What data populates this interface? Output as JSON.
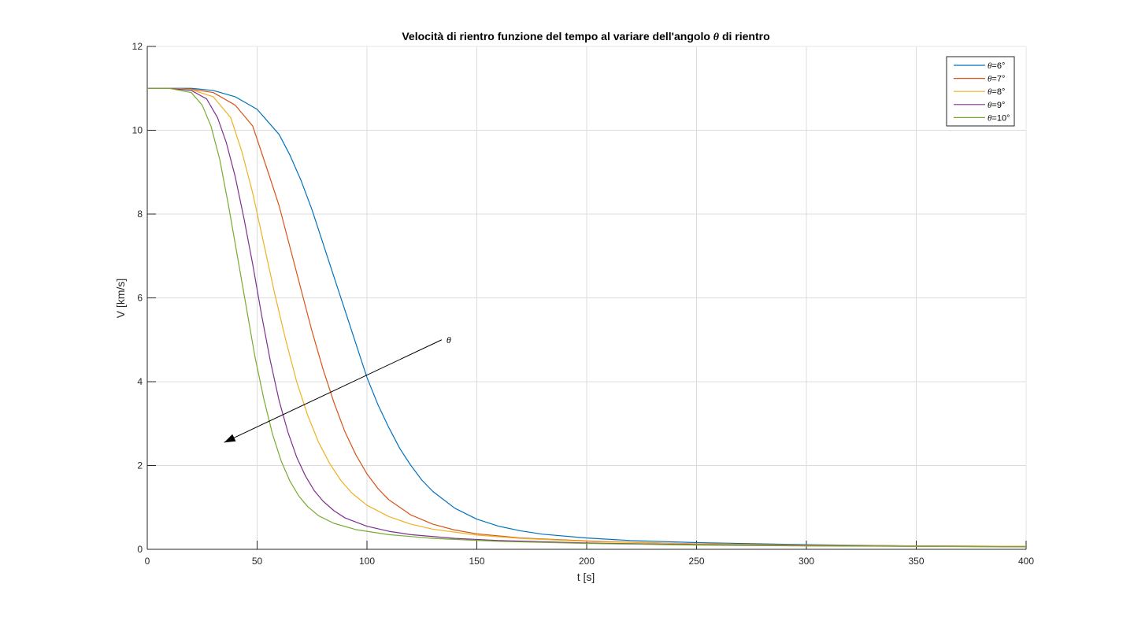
{
  "chart_data": {
    "type": "line",
    "title_prefix": "Velocità di rientro funzione del tempo al variare dell'angolo ",
    "title_symbol": "θ",
    "title_suffix": " di rientro",
    "xlabel": "t [s]",
    "ylabel": "V [km/s]",
    "xlim": [
      0,
      400
    ],
    "ylim": [
      0,
      12
    ],
    "xticks": [
      0,
      50,
      100,
      150,
      200,
      250,
      300,
      350,
      400
    ],
    "yticks": [
      0,
      2,
      4,
      6,
      8,
      10,
      12
    ],
    "grid": true,
    "legend_position": "top-right",
    "annotation": {
      "label": "θ",
      "arrow_from": [
        134,
        5.0
      ],
      "arrow_to": [
        35,
        2.55
      ]
    },
    "series": [
      {
        "name": "θ=6°",
        "symbol": "θ",
        "suffix": "=6°",
        "color": "#0072BD",
        "points": [
          [
            0,
            11
          ],
          [
            10,
            11
          ],
          [
            20,
            11
          ],
          [
            30,
            10.95
          ],
          [
            40,
            10.8
          ],
          [
            50,
            10.5
          ],
          [
            60,
            9.9
          ],
          [
            65,
            9.4
          ],
          [
            70,
            8.8
          ],
          [
            75,
            8.1
          ],
          [
            80,
            7.3
          ],
          [
            85,
            6.5
          ],
          [
            90,
            5.7
          ],
          [
            95,
            4.9
          ],
          [
            100,
            4.1
          ],
          [
            105,
            3.45
          ],
          [
            110,
            2.9
          ],
          [
            115,
            2.4
          ],
          [
            120,
            2.0
          ],
          [
            125,
            1.65
          ],
          [
            130,
            1.38
          ],
          [
            140,
            0.98
          ],
          [
            150,
            0.72
          ],
          [
            160,
            0.55
          ],
          [
            170,
            0.44
          ],
          [
            180,
            0.36
          ],
          [
            200,
            0.27
          ],
          [
            220,
            0.21
          ],
          [
            250,
            0.16
          ],
          [
            300,
            0.11
          ],
          [
            350,
            0.08
          ],
          [
            400,
            0.07
          ]
        ]
      },
      {
        "name": "θ=7°",
        "symbol": "θ",
        "suffix": "=7°",
        "color": "#D95319",
        "points": [
          [
            0,
            11
          ],
          [
            10,
            11
          ],
          [
            20,
            10.98
          ],
          [
            30,
            10.9
          ],
          [
            40,
            10.6
          ],
          [
            48,
            10.1
          ],
          [
            55,
            9.0
          ],
          [
            60,
            8.2
          ],
          [
            65,
            7.2
          ],
          [
            70,
            6.2
          ],
          [
            75,
            5.2
          ],
          [
            80,
            4.3
          ],
          [
            85,
            3.5
          ],
          [
            90,
            2.8
          ],
          [
            95,
            2.25
          ],
          [
            100,
            1.8
          ],
          [
            105,
            1.45
          ],
          [
            110,
            1.18
          ],
          [
            120,
            0.82
          ],
          [
            130,
            0.6
          ],
          [
            140,
            0.46
          ],
          [
            150,
            0.37
          ],
          [
            170,
            0.27
          ],
          [
            200,
            0.2
          ],
          [
            250,
            0.13
          ],
          [
            300,
            0.1
          ],
          [
            350,
            0.08
          ],
          [
            400,
            0.07
          ]
        ]
      },
      {
        "name": "θ=8°",
        "symbol": "θ",
        "suffix": "=8°",
        "color": "#EDB120",
        "points": [
          [
            0,
            11
          ],
          [
            10,
            11
          ],
          [
            20,
            10.97
          ],
          [
            30,
            10.8
          ],
          [
            38,
            10.3
          ],
          [
            43,
            9.5
          ],
          [
            48,
            8.5
          ],
          [
            53,
            7.3
          ],
          [
            58,
            6.1
          ],
          [
            63,
            5.0
          ],
          [
            68,
            4.0
          ],
          [
            73,
            3.2
          ],
          [
            78,
            2.55
          ],
          [
            83,
            2.05
          ],
          [
            88,
            1.65
          ],
          [
            93,
            1.35
          ],
          [
            100,
            1.05
          ],
          [
            110,
            0.78
          ],
          [
            120,
            0.6
          ],
          [
            130,
            0.48
          ],
          [
            150,
            0.34
          ],
          [
            170,
            0.26
          ],
          [
            200,
            0.19
          ],
          [
            250,
            0.13
          ],
          [
            300,
            0.1
          ],
          [
            350,
            0.08
          ],
          [
            400,
            0.07
          ]
        ]
      },
      {
        "name": "θ=9°",
        "symbol": "θ",
        "suffix": "=9°",
        "color": "#7E2F8E",
        "points": [
          [
            0,
            11
          ],
          [
            10,
            11
          ],
          [
            20,
            10.95
          ],
          [
            27,
            10.75
          ],
          [
            32,
            10.3
          ],
          [
            36,
            9.7
          ],
          [
            40,
            8.9
          ],
          [
            44,
            7.9
          ],
          [
            48,
            6.8
          ],
          [
            52,
            5.6
          ],
          [
            56,
            4.5
          ],
          [
            60,
            3.55
          ],
          [
            64,
            2.8
          ],
          [
            68,
            2.2
          ],
          [
            72,
            1.75
          ],
          [
            76,
            1.4
          ],
          [
            80,
            1.15
          ],
          [
            85,
            0.92
          ],
          [
            90,
            0.75
          ],
          [
            100,
            0.55
          ],
          [
            110,
            0.43
          ],
          [
            120,
            0.35
          ],
          [
            140,
            0.26
          ],
          [
            160,
            0.21
          ],
          [
            200,
            0.15
          ],
          [
            250,
            0.11
          ],
          [
            300,
            0.09
          ],
          [
            350,
            0.07
          ],
          [
            400,
            0.06
          ]
        ]
      },
      {
        "name": "θ=10°",
        "symbol": "θ",
        "suffix": "=10°",
        "color": "#77AC30",
        "points": [
          [
            0,
            11
          ],
          [
            10,
            11
          ],
          [
            20,
            10.9
          ],
          [
            25,
            10.6
          ],
          [
            29,
            10.1
          ],
          [
            33,
            9.3
          ],
          [
            37,
            8.2
          ],
          [
            41,
            7.0
          ],
          [
            45,
            5.8
          ],
          [
            49,
            4.6
          ],
          [
            53,
            3.6
          ],
          [
            57,
            2.75
          ],
          [
            61,
            2.1
          ],
          [
            65,
            1.62
          ],
          [
            69,
            1.27
          ],
          [
            73,
            1.02
          ],
          [
            78,
            0.8
          ],
          [
            85,
            0.62
          ],
          [
            95,
            0.47
          ],
          [
            110,
            0.35
          ],
          [
            130,
            0.26
          ],
          [
            160,
            0.19
          ],
          [
            200,
            0.14
          ],
          [
            250,
            0.1
          ],
          [
            300,
            0.08
          ],
          [
            350,
            0.07
          ],
          [
            400,
            0.06
          ]
        ]
      }
    ]
  }
}
